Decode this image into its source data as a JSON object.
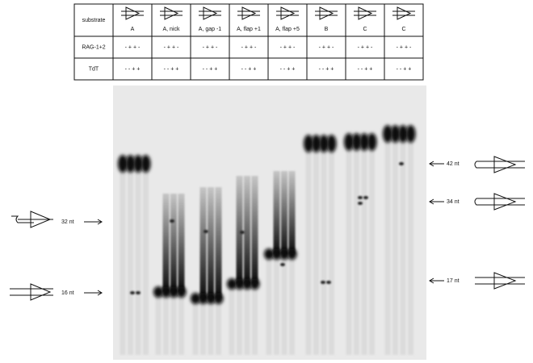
{
  "table": {
    "header": "substrate",
    "substrates": [
      "A",
      "A, nick",
      "A, gap -1",
      "A, flap +1",
      "A, flap +5",
      "B",
      "C",
      "C"
    ],
    "rows": [
      {
        "label": "RAG-1+2",
        "cells": [
          "- + + -",
          "- + + -",
          "- + + -",
          "- + + -",
          "- + + -",
          "- + + -",
          "- + + -",
          "- + + -"
        ]
      },
      {
        "label": "TdT",
        "cells": [
          "- - + +",
          "- - + +",
          "- - + +",
          "- - + +",
          "- - + +",
          "- - + +",
          "- - + +",
          "- - + +"
        ]
      }
    ]
  },
  "markers_left": [
    "32 nt",
    "16 nt"
  ],
  "markers_right": [
    "42 nt",
    "34 nt",
    "17 nt"
  ]
}
